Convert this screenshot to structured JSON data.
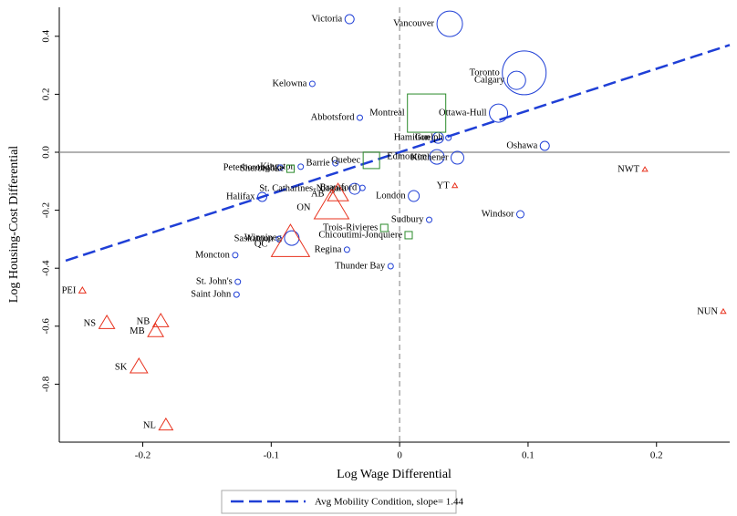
{
  "chart_data": {
    "type": "scatter",
    "xlabel": "Log Wage Differential",
    "ylabel": "Log Housing-Cost Differential",
    "xlim": [
      -0.265,
      0.257
    ],
    "ylim": [
      -1.0,
      0.5
    ],
    "xticks": [
      -0.2,
      -0.1,
      {
        "value": 0,
        "label": "0"
      },
      0.1,
      0.2
    ],
    "yticks": [
      0.4,
      0.2,
      {
        "value": 0,
        "label": "0.0"
      },
      -0.2,
      -0.4,
      -0.6,
      -0.8
    ],
    "hline": 0,
    "vline": 0,
    "series": [
      {
        "marker": "circle",
        "color": "#1f3fd6",
        "labels": [
          "Victoria",
          "Vancouver",
          "Toronto",
          "Calgary",
          "Kelowna",
          "Abbotsford",
          "Ottawa-Hull",
          "Hamilton",
          "Guelph",
          "Oshawa",
          "Edmonton",
          "Kitchener",
          "Barrie",
          "Kingston",
          "Peterborough",
          "St. Catharines-Niagara",
          "Brantford",
          "London",
          "Halifax",
          "Windsor",
          "Sudbury",
          "Winnipeg",
          "Saskatoon",
          "Regina",
          "Moncton",
          "Thunder Bay",
          "St. John's",
          "Saint John"
        ],
        "x": [
          -0.039,
          0.039,
          0.097,
          0.091,
          -0.068,
          -0.031,
          0.077,
          0.03,
          0.038,
          0.113,
          0.029,
          0.045,
          -0.05,
          -0.077,
          -0.093,
          -0.035,
          -0.029,
          0.011,
          -0.107,
          0.094,
          0.023,
          -0.084,
          -0.094,
          -0.041,
          -0.128,
          -0.007,
          -0.126,
          -0.127
        ],
        "values": [
          0.459,
          0.443,
          0.274,
          0.248,
          0.236,
          0.119,
          0.135,
          0.05,
          0.05,
          0.022,
          -0.016,
          -0.019,
          -0.038,
          -0.05,
          -0.053,
          -0.126,
          -0.123,
          -0.151,
          -0.154,
          -0.214,
          -0.233,
          -0.296,
          -0.299,
          -0.336,
          -0.355,
          -0.393,
          -0.447,
          -0.491
        ],
        "sizes": [
          5,
          14,
          24,
          10,
          3,
          3,
          10,
          6,
          3,
          5,
          8,
          7,
          3,
          3,
          3,
          6,
          3,
          6,
          5,
          4,
          3,
          8,
          3,
          3,
          3,
          3,
          3,
          3
        ]
      },
      {
        "marker": "square",
        "color": "#2a8a2a",
        "labels": [
          "Montreal",
          "Quebec",
          "Trois-Rivieres",
          "Chicoutimi-Jonquiere",
          "Sherbrooke"
        ],
        "x": [
          0.021,
          -0.022,
          -0.012,
          0.007,
          -0.085
        ],
        "values": [
          0.135,
          -0.028,
          -0.261,
          -0.286,
          -0.057
        ],
        "sizes": [
          21,
          9,
          4,
          4,
          4
        ]
      },
      {
        "marker": "triangle",
        "color": "#e8321e",
        "labels": [
          "YT",
          "NWT",
          "NUN",
          "PEI",
          "NS",
          "NB",
          "MB",
          "SK",
          "NL",
          "ON",
          "AB",
          "QC"
        ],
        "x": [
          0.043,
          0.191,
          0.252,
          -0.247,
          -0.228,
          -0.186,
          -0.19,
          -0.203,
          -0.182,
          -0.053,
          -0.048,
          -0.085
        ],
        "values": [
          -0.116,
          -0.06,
          -0.55,
          -0.478,
          -0.591,
          -0.585,
          -0.619,
          -0.742,
          -0.943,
          -0.192,
          -0.145,
          -0.318
        ],
        "sizes": [
          3,
          3,
          3,
          4,
          9,
          9,
          9,
          10,
          8,
          20,
          12,
          22
        ]
      }
    ],
    "fit": {
      "name": "Avg Mobility Condition, slope= 1.44",
      "color": "#1f3fd6",
      "x": [
        -0.26,
        0.257
      ],
      "values": [
        -0.374,
        0.37
      ]
    }
  }
}
